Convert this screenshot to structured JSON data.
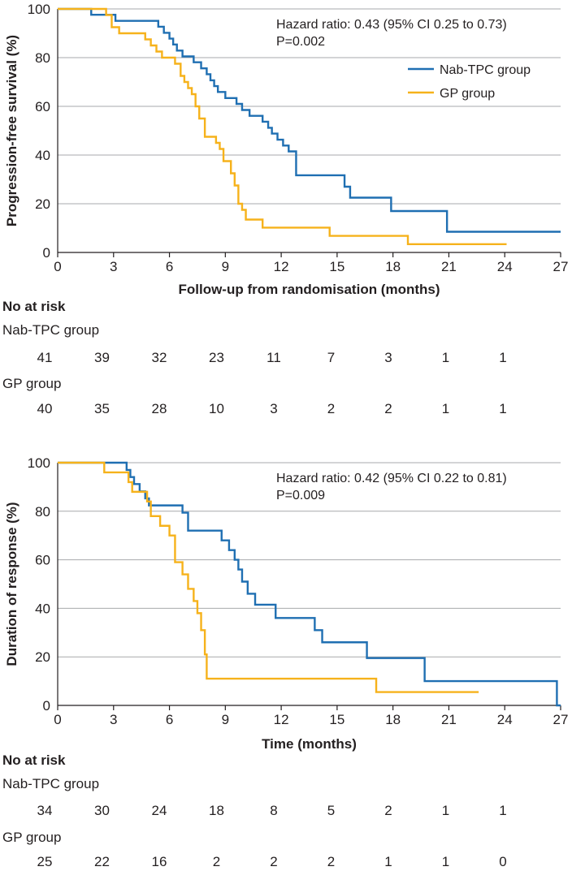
{
  "colors": {
    "nab_tpc": "#1f6fb2",
    "gp": "#f6b21b",
    "grid": "#a7a9ac",
    "text": "#231f20"
  },
  "chart_data": [
    {
      "type": "line",
      "subtype": "kaplan-meier step",
      "ylabel": "Progression-free survival (%)",
      "xlabel": "Follow-up from randomisation (months)",
      "xlim": [
        0,
        27
      ],
      "ylim": [
        0,
        100
      ],
      "xticks": [
        0,
        3,
        6,
        9,
        12,
        15,
        18,
        21,
        24,
        27
      ],
      "yticks": [
        0,
        20,
        40,
        60,
        80,
        100
      ],
      "grid": "horizontal",
      "annotation_line1": "Hazard ratio: 0.43 (95% CI 0.25 to 0.73)",
      "annotation_line2": "P=0.002",
      "legend": [
        "Nab-TPC group",
        "GP group"
      ],
      "legend_position": "top-right",
      "series": [
        {
          "name": "Nab-TPC group",
          "color": "#1f6fb2",
          "x": [
            0,
            1.8,
            3.1,
            5.4,
            5.7,
            6.0,
            6.2,
            6.4,
            6.7,
            7.3,
            7.7,
            8.0,
            8.2,
            8.4,
            8.6,
            9.0,
            9.6,
            9.9,
            10.3,
            11.0,
            11.3,
            11.5,
            11.8,
            12.1,
            12.4,
            12.8,
            15.4,
            15.7,
            16.0,
            17.9,
            18.2,
            20.9,
            21.2,
            27
          ],
          "y": [
            100,
            97.6,
            95.1,
            92.7,
            90.2,
            87.8,
            85.4,
            82.9,
            80.5,
            78.1,
            75.6,
            73.2,
            70.7,
            68.3,
            65.9,
            63.4,
            61.0,
            58.5,
            56.1,
            53.7,
            51.2,
            48.8,
            46.3,
            43.9,
            41.5,
            31.7,
            27.0,
            22.5,
            22.5,
            17.0,
            17.0,
            8.5,
            8.5,
            8.5
          ]
        },
        {
          "name": "GP group",
          "color": "#f6b21b",
          "x": [
            0,
            2.6,
            2.9,
            3.3,
            4.7,
            5.0,
            5.3,
            5.6,
            6.3,
            6.6,
            6.8,
            7.0,
            7.2,
            7.4,
            7.6,
            7.9,
            8.5,
            8.7,
            8.9,
            9.3,
            9.5,
            9.7,
            9.9,
            10.1,
            11.0,
            14.6,
            18.8,
            24.1
          ],
          "y": [
            100,
            97.5,
            92.5,
            90.0,
            87.5,
            85.0,
            82.5,
            80.0,
            77.5,
            72.5,
            70.0,
            67.5,
            65.0,
            60.0,
            55.0,
            47.5,
            45.0,
            42.5,
            37.5,
            32.5,
            27.5,
            20.0,
            17.5,
            13.5,
            10.2,
            6.8,
            3.4,
            3.4
          ]
        }
      ],
      "risk_table": {
        "title": "No at risk",
        "times": [
          0,
          3,
          6,
          9,
          12,
          15,
          18,
          21,
          24
        ],
        "rows": [
          {
            "label": "Nab-TPC group",
            "values": [
              "41",
              "39",
              "32",
              "23",
              "11",
              "7",
              "3",
              "1",
              "1"
            ]
          },
          {
            "label": "GP group",
            "values": [
              "40",
              "35",
              "28",
              "10",
              "3",
              "2",
              "2",
              "1",
              "1"
            ]
          }
        ]
      }
    },
    {
      "type": "line",
      "subtype": "kaplan-meier step",
      "ylabel": "Duration of response (%)",
      "xlabel": "Time (months)",
      "xlim": [
        0,
        27
      ],
      "ylim": [
        0,
        100
      ],
      "xticks": [
        0,
        3,
        6,
        9,
        12,
        15,
        18,
        21,
        24,
        27
      ],
      "yticks": [
        0,
        20,
        40,
        60,
        80,
        100
      ],
      "grid": "horizontal",
      "annotation_line1": "Hazard ratio: 0.42 (95% CI 0.22 to 0.81)",
      "annotation_line2": "P=0.009",
      "series": [
        {
          "name": "Nab-TPC group",
          "color": "#1f6fb2",
          "x": [
            0,
            3.7,
            3.9,
            4.1,
            4.4,
            4.7,
            4.9,
            5.1,
            6.7,
            7.0,
            8.8,
            9.2,
            9.5,
            9.7,
            9.9,
            10.2,
            10.6,
            11.1,
            11.7,
            12.0,
            13.8,
            14.2,
            14.5,
            16.6,
            17.0,
            19.7,
            20.0,
            26.8,
            27.0
          ],
          "y": [
            100,
            97.0,
            94.1,
            91.2,
            88.2,
            85.3,
            82.4,
            82.4,
            79.4,
            72.0,
            68.0,
            64.0,
            60.0,
            56.0,
            51.0,
            46.0,
            41.5,
            41.5,
            36.0,
            36.0,
            31.0,
            26.0,
            26.0,
            19.5,
            19.5,
            10.0,
            10.0,
            0,
            0
          ]
        },
        {
          "name": "GP group",
          "color": "#f6b21b",
          "x": [
            0,
            2.5,
            3.8,
            4.0,
            4.3,
            4.8,
            5.0,
            5.5,
            6.0,
            6.3,
            6.7,
            7.0,
            7.3,
            7.5,
            7.7,
            7.9,
            8.0,
            17.1,
            22.6
          ],
          "y": [
            100,
            96.0,
            92.0,
            88.0,
            88.0,
            84.0,
            78.0,
            74.0,
            70.0,
            59.0,
            54.0,
            48.0,
            43.0,
            38.0,
            31.0,
            21.0,
            11.0,
            5.5,
            5.5
          ]
        }
      ],
      "risk_table": {
        "title": "No at risk",
        "times": [
          0,
          3,
          6,
          9,
          12,
          15,
          18,
          21,
          24
        ],
        "rows": [
          {
            "label": "Nab-TPC group",
            "values": [
              "34",
              "30",
              "24",
              "18",
              "8",
              "5",
              "2",
              "1",
              "1"
            ]
          },
          {
            "label": "GP group",
            "values": [
              "25",
              "22",
              "16",
              "2",
              "2",
              "2",
              "1",
              "1",
              "0"
            ]
          }
        ]
      }
    }
  ]
}
